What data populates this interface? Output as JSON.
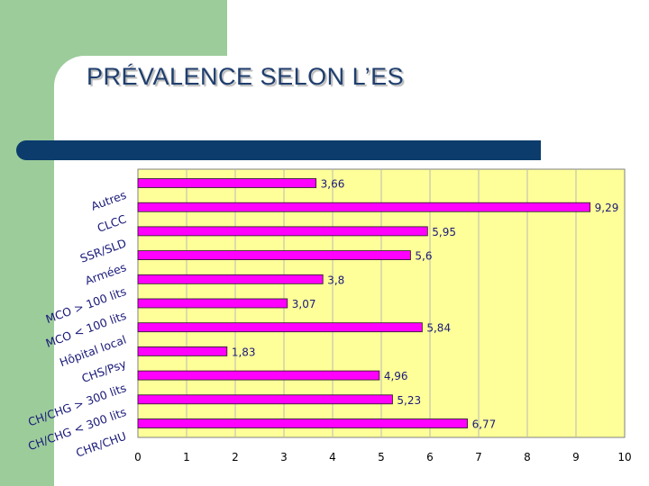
{
  "slide": {
    "title": "PRÉVALENCE SELON L’ES"
  },
  "colors": {
    "green_band": "#9ccc9a",
    "title": "#1f3e6e",
    "blue_bar": "#0b3c6c",
    "plot_bg": "#ffff99",
    "bar_fill": "#ff00ff"
  },
  "chart_data": {
    "type": "bar",
    "orientation": "horizontal",
    "title": "",
    "xlabel": "",
    "ylabel": "",
    "categories": [
      "Autres",
      "CLCC",
      "SSR/SLD",
      "Armées",
      "MCO > 100 lits",
      "MCO < 100 lits",
      "Hôpital local",
      "CHS/Psy",
      "CH/CHG > 300 lits",
      "CH/CHG < 300 lits",
      "CHR/CHU"
    ],
    "values": [
      3.66,
      9.29,
      5.95,
      5.6,
      3.8,
      3.07,
      5.84,
      1.83,
      4.96,
      5.23,
      6.77
    ],
    "value_labels": [
      "3,66",
      "9,29",
      "5,95",
      "5,6",
      "3,8",
      "3,07",
      "5,84",
      "1,83",
      "4,96",
      "5,23",
      "6,77"
    ],
    "xlim": [
      0,
      10
    ],
    "xticks": [
      0,
      1,
      2,
      3,
      4,
      5,
      6,
      7,
      8,
      9,
      10
    ],
    "grid": true,
    "legend": "none"
  }
}
